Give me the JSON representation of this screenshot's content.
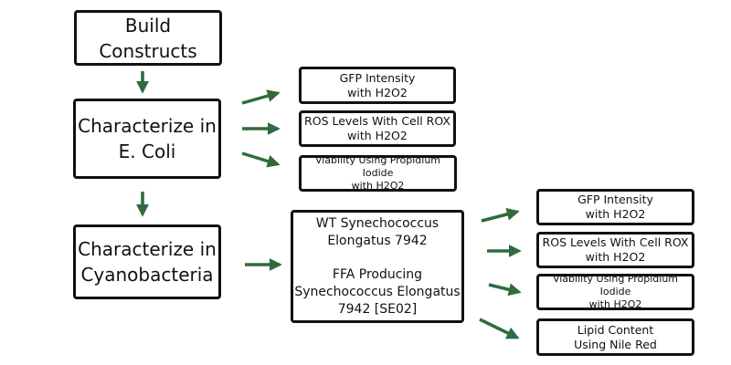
{
  "colors": {
    "arrow": "#2f6b3f",
    "border": "#111111"
  },
  "nodes": {
    "build": [
      "Build",
      "Constructs"
    ],
    "ecoli": [
      "Characterize in",
      "E. Coli"
    ],
    "cyano": [
      "Characterize in",
      "Cyanobacteria"
    ],
    "e_gfp": [
      "GFP Intensity",
      "with H2O2"
    ],
    "e_ros": [
      "ROS Levels With Cell ROX",
      "with H2O2"
    ],
    "e_via": [
      "Viability Using Propidium Iodide",
      "with H2O2"
    ],
    "strains": {
      "wt": [
        "WT Synechococcus",
        "Elongatus 7942"
      ],
      "ffa": [
        "FFA Producing",
        "Synechococcus Elongatus",
        "7942 [SE02]"
      ]
    },
    "c_gfp": [
      "GFP Intensity",
      "with H2O2"
    ],
    "c_ros": [
      "ROS Levels With Cell ROX",
      "with H2O2"
    ],
    "c_via": [
      "Viability Using Propidium Iodide",
      "with H2O2"
    ],
    "c_lipid": [
      "Lipid Content",
      "Using Nile Red"
    ]
  }
}
